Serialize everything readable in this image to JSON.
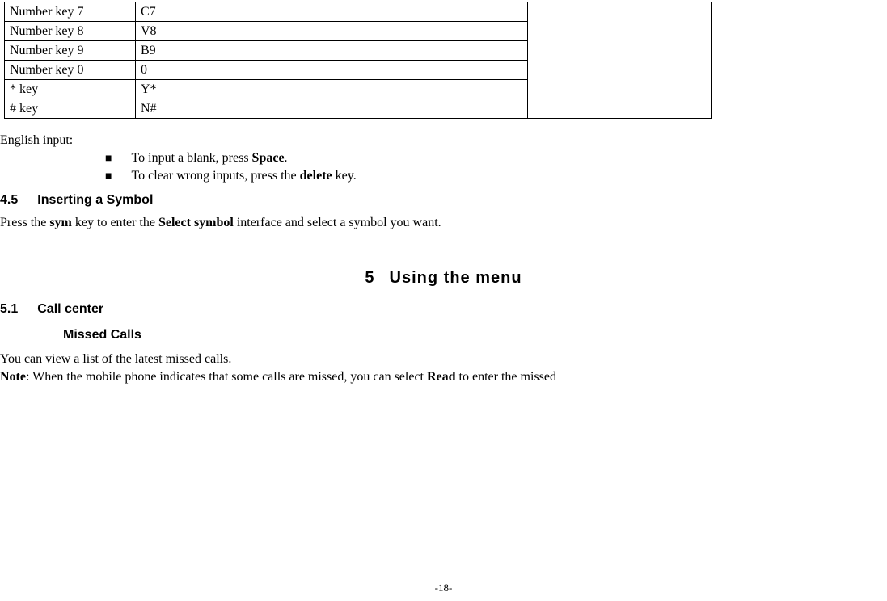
{
  "table": {
    "rows": [
      {
        "key": "Number key 7",
        "val": "C7"
      },
      {
        "key": "Number key 8",
        "val": "V8"
      },
      {
        "key": "Number key 9",
        "val": "B9"
      },
      {
        "key": "Number key 0",
        "val": "0"
      },
      {
        "key": "* key",
        "val": "Y*"
      },
      {
        "key": "# key",
        "val": "N#"
      }
    ]
  },
  "english_input": {
    "label": "English input:",
    "bullets": [
      {
        "pre": "To input a blank, press ",
        "bold": "Space",
        "post": "."
      },
      {
        "pre": "To clear wrong inputs, press the ",
        "bold": "delete",
        "post": " key."
      }
    ]
  },
  "section_45": {
    "num": "4.5",
    "title": "Inserting a Symbol",
    "body_pre": "Press the ",
    "body_bold1": "sym",
    "body_mid": " key to enter the ",
    "body_bold2": "Select symbol",
    "body_post": " interface and select a symbol you want."
  },
  "chapter5": {
    "num": "5",
    "title": "Using the menu"
  },
  "section_51": {
    "num": "5.1",
    "title": "Call center"
  },
  "missed_calls": {
    "heading": "Missed Calls",
    "line1": "You can view a list of the latest missed calls.",
    "note_label": "Note",
    "note_pre": ": When the mobile phone indicates that some calls are missed, you can select ",
    "note_bold": "Read",
    "note_post": " to enter the missed"
  },
  "page_number": "-18-"
}
